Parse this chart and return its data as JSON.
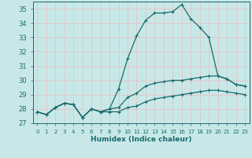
{
  "xlabel": "Humidex (Indice chaleur)",
  "xlim": [
    -0.5,
    23.5
  ],
  "ylim": [
    27,
    35.5
  ],
  "yticks": [
    27,
    28,
    29,
    30,
    31,
    32,
    33,
    34,
    35
  ],
  "xtick_labels": [
    "0",
    "1",
    "2",
    "3",
    "4",
    "5",
    "6",
    "7",
    "8",
    "9",
    "10",
    "11",
    "12",
    "13",
    "14",
    "15",
    "16",
    "17",
    "18",
    "19",
    "20",
    "21",
    "22",
    "23"
  ],
  "background_color": "#c8e8e8",
  "grid_color": "#e0c8c8",
  "line_color": "#1a6b6b",
  "series": [
    [
      27.8,
      27.6,
      28.1,
      28.4,
      28.3,
      27.4,
      28.0,
      27.8,
      27.8,
      27.8,
      28.1,
      28.2,
      28.5,
      28.7,
      28.8,
      28.9,
      29.0,
      29.1,
      29.2,
      29.3,
      29.3,
      29.2,
      29.1,
      29.0
    ],
    [
      27.8,
      27.6,
      28.1,
      28.4,
      28.3,
      27.4,
      28.0,
      27.8,
      28.0,
      28.1,
      28.8,
      29.1,
      29.6,
      29.8,
      29.9,
      30.0,
      30.0,
      30.1,
      30.2,
      30.3,
      30.3,
      30.1,
      29.7,
      29.6
    ],
    [
      27.8,
      27.6,
      28.1,
      28.4,
      28.3,
      27.4,
      28.0,
      27.8,
      28.0,
      29.4,
      31.5,
      33.1,
      34.2,
      34.7,
      34.7,
      34.8,
      35.3,
      34.3,
      33.7,
      33.0,
      30.3,
      30.1,
      29.7,
      29.6
    ]
  ]
}
